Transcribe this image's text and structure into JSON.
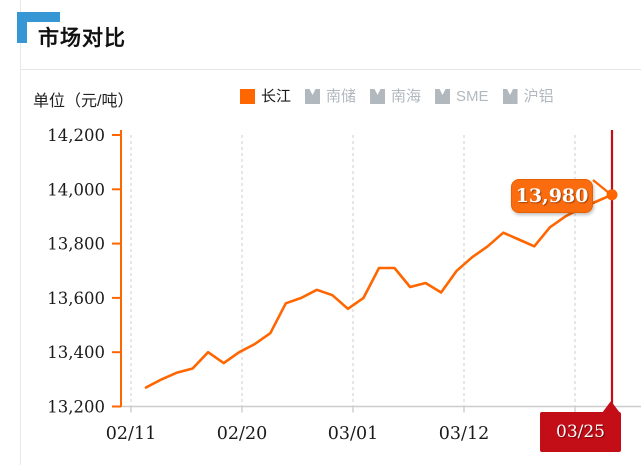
{
  "header": {
    "title": "市场对比"
  },
  "chart": {
    "unit_label": "单位（元/吨）",
    "tooltip_value": "13,980",
    "axis_pointer_date": "03/25"
  },
  "legend": {
    "items": [
      {
        "label": "长江",
        "active": true
      },
      {
        "label": "南储",
        "active": false
      },
      {
        "label": "南海",
        "active": false
      },
      {
        "label": "SME",
        "active": false
      },
      {
        "label": "沪铝",
        "active": false
      }
    ]
  },
  "colors": {
    "accent_orange": "#FF6600",
    "highlight_red": "#C30D17",
    "title_blue": "#3796D4",
    "inactive_gray": "#B1B8BE",
    "gridline_gray": "#DDDDDD",
    "axis_gray": "#CCCCCC"
  },
  "chart_data": {
    "type": "line",
    "title": "市场对比",
    "unit": "元/吨",
    "legend_position": "top",
    "grid": "vertical-dashed",
    "x_tick_labels": [
      "02/11",
      "02/20",
      "03/01",
      "03/12",
      ""
    ],
    "y_ticks": [
      14200,
      14000,
      13800,
      13600,
      13400,
      13200
    ],
    "ylim": [
      13200,
      14200
    ],
    "series": [
      {
        "name": "长江",
        "color": "#FF6600",
        "dates": [
          "02/11",
          "02/12",
          "02/13",
          "02/14",
          "02/15",
          "02/18",
          "02/19",
          "02/20",
          "02/21",
          "02/22",
          "02/25",
          "02/26",
          "02/27",
          "02/28",
          "03/01",
          "03/04",
          "03/05",
          "03/06",
          "03/07",
          "03/08",
          "03/11",
          "03/12",
          "03/13",
          "03/14",
          "03/15",
          "03/18",
          "03/19",
          "03/20",
          "03/21",
          "03/22",
          "03/25"
        ],
        "values": [
          13270,
          13300,
          13325,
          13340,
          13400,
          13360,
          13400,
          13430,
          13470,
          13580,
          13600,
          13630,
          13610,
          13560,
          13600,
          13710,
          13710,
          13640,
          13655,
          13620,
          13700,
          13750,
          13790,
          13840,
          13815,
          13790,
          13860,
          13900,
          13930,
          13955,
          13980
        ]
      }
    ],
    "inactive_series": [
      "南储",
      "南海",
      "SME",
      "沪铝"
    ],
    "highlight": {
      "date": "03/25",
      "value": 13980,
      "label": "13,980"
    }
  }
}
